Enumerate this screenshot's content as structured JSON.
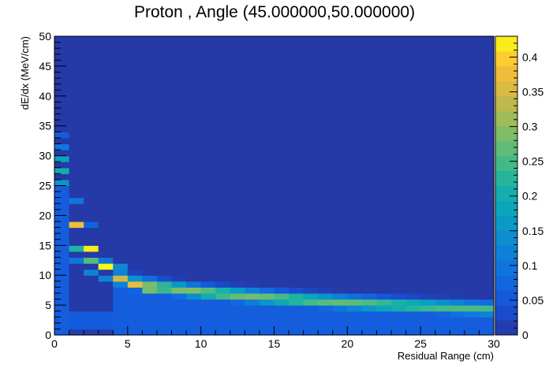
{
  "chart_data": {
    "type": "heatmap",
    "title": "Proton , Angle (45.000000,50.000000)",
    "xlabel": "Residual Range (cm)",
    "ylabel": "dE/dx (MeV/cm)",
    "xlim": [
      0,
      30
    ],
    "ylim": [
      0,
      50
    ],
    "zlim": [
      0,
      0.43
    ],
    "x_ticks": [
      0,
      5,
      10,
      15,
      20,
      25,
      30
    ],
    "y_ticks": [
      0,
      5,
      10,
      15,
      20,
      25,
      30,
      35,
      40,
      45,
      50
    ],
    "z_ticks": [
      0,
      0.05,
      0.1,
      0.15,
      0.2,
      0.25,
      0.3,
      0.35,
      0.4
    ],
    "x_bin_width": 1,
    "y_bin_width": 1,
    "background_value": 0.005,
    "curve_band": {
      "x_from": 4,
      "x_to": 30,
      "peak_dEdx_start": 9.5,
      "peak_dEdx_end": 4.3,
      "peak_value_start": 0.3,
      "peak_value_end": 0.25
    },
    "cells": [
      {
        "x": 0,
        "y": 29,
        "v": 0.17
      },
      {
        "x": 0,
        "y": 27,
        "v": 0.2
      },
      {
        "x": 0,
        "y": 25,
        "v": 0.15
      },
      {
        "x": 0,
        "y": 33,
        "v": 0.06
      },
      {
        "x": 0,
        "y": 31,
        "v": 0.1
      },
      {
        "x": 1,
        "y": 22,
        "v": 0.1
      },
      {
        "x": 1,
        "y": 18,
        "v": 0.38
      },
      {
        "x": 1,
        "y": 14,
        "v": 0.22
      },
      {
        "x": 1,
        "y": 12,
        "v": 0.1
      },
      {
        "x": 2,
        "y": 18,
        "v": 0.07
      },
      {
        "x": 2,
        "y": 14,
        "v": 0.42
      },
      {
        "x": 2,
        "y": 12,
        "v": 0.26
      },
      {
        "x": 2,
        "y": 10,
        "v": 0.12
      },
      {
        "x": 3,
        "y": 12,
        "v": 0.1
      },
      {
        "x": 3,
        "y": 11,
        "v": 0.43
      },
      {
        "x": 3,
        "y": 9,
        "v": 0.12
      },
      {
        "x": 4,
        "y": 11,
        "v": 0.13
      },
      {
        "x": 4,
        "y": 9,
        "v": 0.35
      },
      {
        "x": 5,
        "y": 9,
        "v": 0.15
      },
      {
        "x": 5,
        "y": 8,
        "v": 0.37
      },
      {
        "x": 6,
        "y": 7,
        "v": 0.28
      }
    ]
  }
}
